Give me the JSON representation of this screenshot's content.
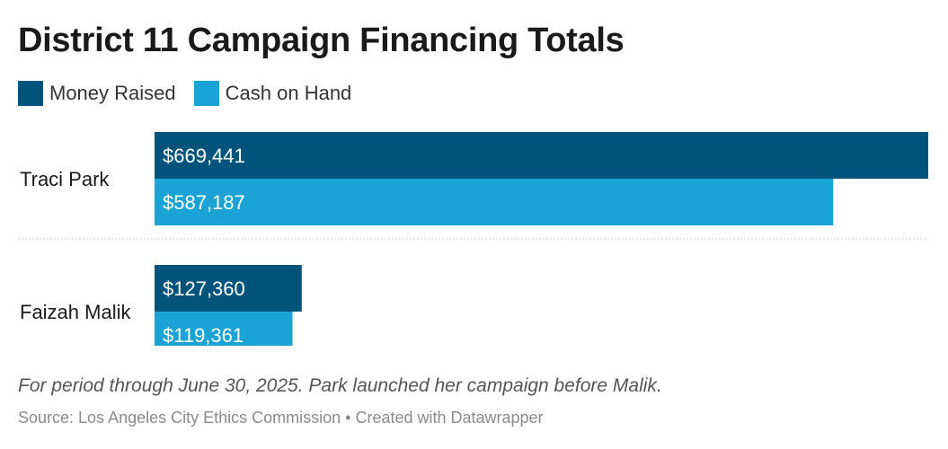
{
  "colors": {
    "money_raised": "#00547c",
    "cash_on_hand": "#1aa3d4"
  },
  "chart_data": {
    "type": "bar",
    "orientation": "horizontal",
    "title": "District 11 Campaign Financing Totals",
    "categories": [
      "Traci Park",
      "Faizah Malik"
    ],
    "series": [
      {
        "name": "Money Raised",
        "values": [
          669441,
          127360
        ],
        "labels": [
          "$669,441",
          "$127,360"
        ]
      },
      {
        "name": "Cash on Hand",
        "values": [
          587187,
          119361
        ],
        "labels": [
          "$587,187",
          "$119,361"
        ]
      }
    ],
    "xlim": [
      0,
      669441
    ],
    "legend": "top-left"
  },
  "note": "For period through June 30, 2025. Park launched her campaign before Malik.",
  "source": "Source: Los Angeles City Ethics Commission • Created with Datawrapper"
}
